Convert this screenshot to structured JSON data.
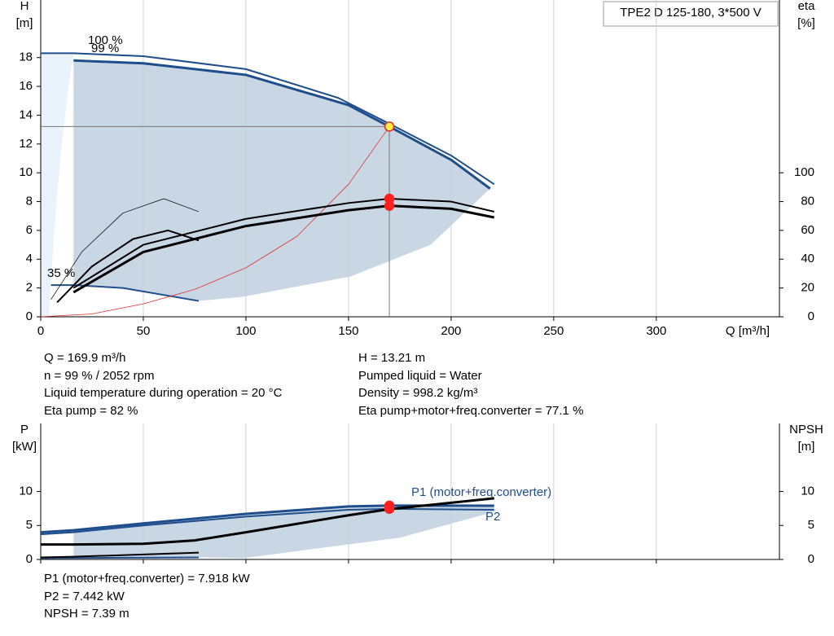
{
  "header": {
    "title": "TPE2 D 125-180, 3*500 V"
  },
  "chart_data": [
    {
      "type": "line",
      "y_label": "H",
      "y_unit": "[m]",
      "y2_label": "eta",
      "y2_unit": "[%]",
      "x_label": "Q [m³/h]",
      "xlim": [
        0,
        360
      ],
      "xticks": [
        0,
        50,
        100,
        150,
        200,
        250,
        300
      ],
      "ylim": [
        0,
        22
      ],
      "yticks": [
        0,
        2,
        4,
        6,
        8,
        10,
        12,
        14,
        16,
        18
      ],
      "y2lim": [
        0,
        220
      ],
      "y2ticks": [
        0,
        20,
        40,
        60,
        80,
        100
      ],
      "grid": true,
      "region": {
        "color": "#c9d6e4",
        "x": [
          16,
          50,
          100,
          150,
          169.9,
          200,
          219,
          190,
          151,
          99,
          77,
          40,
          16
        ],
        "values": [
          17.8,
          17.6,
          16.8,
          14.7,
          13.21,
          10.9,
          8.9,
          5,
          2.8,
          1.4,
          1.1,
          2.0,
          2.2
        ]
      },
      "series": [
        {
          "color": "#1f4e8c",
          "width": 2,
          "x": [
            0,
            16,
            50,
            100,
            145,
            170,
            200,
            221
          ],
          "values": [
            18.3,
            18.3,
            18.1,
            17.2,
            15.2,
            13.4,
            11.2,
            9.2
          ]
        },
        {
          "color": "#1f4e8c",
          "width": 3,
          "x": [
            16,
            50,
            100,
            150,
            169.9,
            200,
            219
          ],
          "values": [
            17.8,
            17.6,
            16.8,
            14.7,
            13.21,
            10.9,
            8.9
          ]
        },
        {
          "color": "#1f4e8c",
          "width": 2,
          "x": [
            5,
            16,
            40,
            77
          ],
          "values": [
            2.2,
            2.2,
            2.0,
            1.1
          ]
        },
        {
          "color": "#e03030",
          "width": 0.8,
          "x": [
            0,
            25,
            50,
            75,
            100,
            125,
            150,
            169.9
          ],
          "values": [
            0,
            0.2,
            0.9,
            1.9,
            3.4,
            5.6,
            9.2,
            13.21
          ]
        },
        {
          "color": "#000000",
          "width": 2,
          "axis": "y2",
          "x": [
            16,
            50,
            100,
            150,
            170,
            200,
            221
          ],
          "values": [
            20,
            50,
            68,
            79,
            82,
            80,
            73
          ]
        },
        {
          "color": "#000000",
          "width": 3,
          "axis": "y2",
          "x": [
            16,
            50,
            100,
            150,
            170,
            200,
            221
          ],
          "values": [
            17,
            45,
            63,
            74,
            77.1,
            75,
            69
          ]
        },
        {
          "color": "#000000",
          "width": 0.7,
          "axis": "y2",
          "x": [
            5,
            20,
            40,
            60,
            77
          ],
          "values": [
            12,
            45,
            72,
            82,
            73
          ]
        },
        {
          "color": "#000000",
          "width": 2,
          "axis": "y2",
          "x": [
            8,
            25,
            45,
            62,
            77
          ],
          "values": [
            10,
            35,
            54,
            60,
            53
          ]
        }
      ],
      "markers": [
        {
          "x": 169.9,
          "y": 13.21,
          "color": "#ffee44",
          "edge": "#e03030"
        },
        {
          "x": 169.9,
          "y": 82,
          "axis": "y2",
          "color": "#ff2020",
          "edge": "#ff2020"
        },
        {
          "x": 169.9,
          "y": 77.1,
          "axis": "y2",
          "color": "#ff2020",
          "edge": "#ff2020"
        }
      ],
      "annotations": [
        "100 %",
        "99 %",
        "35 %"
      ]
    },
    {
      "type": "line",
      "y_label": "P",
      "y_unit": "[kW]",
      "y2_label": "NPSH",
      "y2_unit": "[m]",
      "xlim": [
        0,
        360
      ],
      "xticks": [
        0,
        50,
        100,
        150,
        200,
        250,
        300
      ],
      "ylim": [
        0,
        20
      ],
      "yticks": [
        0,
        5,
        10
      ],
      "y2lim": [
        0,
        20
      ],
      "y2ticks": [
        0,
        5,
        10
      ],
      "grid": true,
      "region": {
        "color": "#c9d6e4",
        "x": [
          16,
          50,
          100,
          150,
          169.9,
          221,
          221,
          175,
          99,
          77,
          16
        ],
        "values": [
          4.3,
          5.3,
          6.7,
          7.8,
          7.918,
          7.8,
          7.0,
          3.2,
          0.2,
          0.3,
          0.4
        ]
      },
      "series": [
        {
          "color": "#1f4e8c",
          "width": 3,
          "x": [
            0,
            16,
            50,
            100,
            150,
            169.9,
            221
          ],
          "values": [
            4.0,
            4.3,
            5.3,
            6.7,
            7.8,
            7.918,
            7.9
          ]
        },
        {
          "color": "#1f4e8c",
          "width": 2,
          "x": [
            0,
            16,
            50,
            100,
            150,
            169.9,
            221
          ],
          "values": [
            3.7,
            4.0,
            5.0,
            6.3,
            7.3,
            7.442,
            7.3
          ]
        },
        {
          "color": "#1f4e8c",
          "width": 2,
          "x": [
            0,
            77
          ],
          "values": [
            0.2,
            0.3
          ]
        },
        {
          "color": "#000000",
          "width": 3,
          "axis": "y2",
          "x": [
            0,
            16,
            50,
            75,
            100,
            150,
            169.9,
            221
          ],
          "values": [
            2.2,
            2.2,
            2.3,
            2.8,
            4.0,
            6.5,
            7.39,
            9.0
          ]
        },
        {
          "color": "#000000",
          "width": 2,
          "axis": "y2",
          "x": [
            0,
            16,
            77
          ],
          "values": [
            0.3,
            0.4,
            1.0
          ]
        }
      ],
      "markers": [
        {
          "x": 169.9,
          "y": 7.918,
          "color": "#ff2020",
          "edge": "#ff2020"
        },
        {
          "x": 169.9,
          "y": 7.442,
          "color": "#ff2020",
          "edge": "#ff2020"
        }
      ],
      "annotations": [
        "P1 (motor+freq.converter)",
        "P2"
      ]
    }
  ],
  "info_left": [
    "Q = 169.9 m³/h",
    "n = 99 % / 2052 rpm",
    "Liquid temperature during operation = 20 °C",
    "Eta pump = 82 %"
  ],
  "info_right": [
    "H = 13.21 m",
    "Pumped liquid = Water",
    "Density = 998.2 kg/m³",
    "Eta pump+motor+freq.converter = 77.1 %"
  ],
  "info_bottom": [
    "P1 (motor+freq.converter) = 7.918 kW",
    "P2 = 7.442 kW",
    "NPSH = 7.39 m"
  ]
}
